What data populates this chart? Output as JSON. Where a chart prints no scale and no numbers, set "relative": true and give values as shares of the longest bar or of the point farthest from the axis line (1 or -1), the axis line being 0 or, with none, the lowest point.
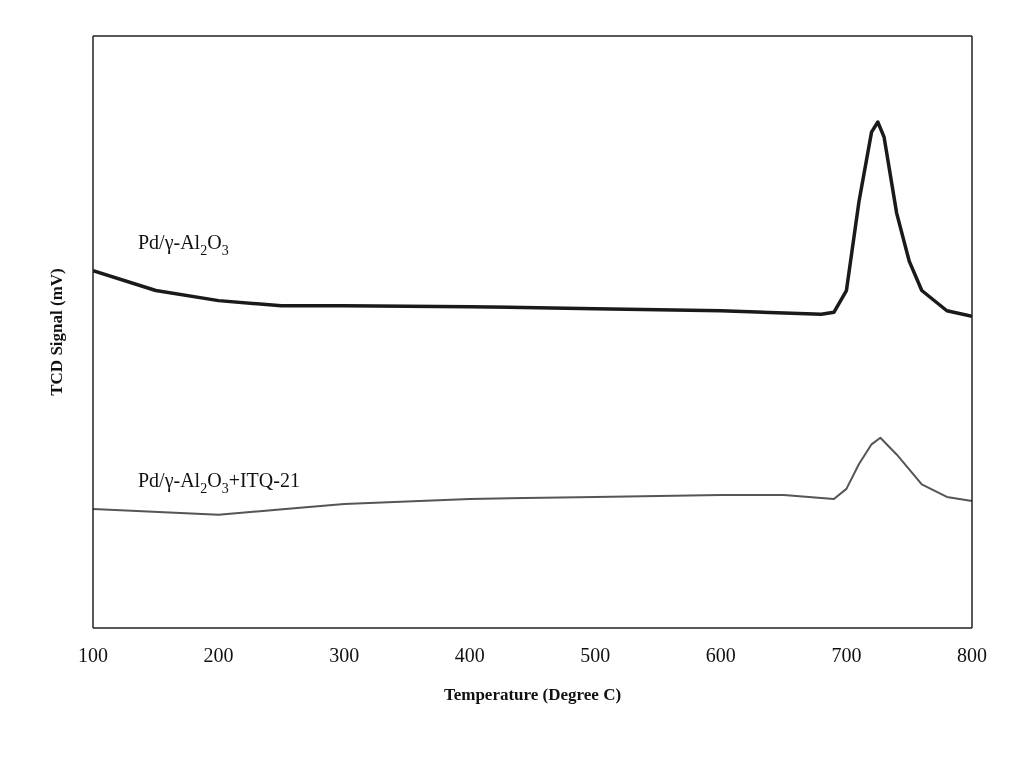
{
  "chart_data": {
    "type": "line",
    "relative": true,
    "xlabel": "Temperature (Degree C)",
    "ylabel": "TCD Signal (mV)",
    "xlim": [
      100,
      800
    ],
    "xticks": [
      100,
      200,
      300,
      400,
      500,
      600,
      700,
      800
    ],
    "marker": "none",
    "series": [
      {
        "name": "Pd/γ-Al$_{2}$O$_{3}$",
        "color": "#1a1a1a",
        "x": [
          100,
          150,
          200,
          250,
          300,
          400,
          500,
          600,
          680,
          690,
          700,
          710,
          720,
          725,
          730,
          740,
          750,
          760,
          780,
          800
        ],
        "values": [
          0.706,
          0.667,
          0.647,
          0.637,
          0.637,
          0.635,
          0.631,
          0.627,
          0.62,
          0.624,
          0.667,
          0.843,
          0.98,
          1,
          0.97,
          0.82,
          0.725,
          0.667,
          0.627,
          0.616
        ]
      },
      {
        "name": "Pd/γ-Al$_{2}$O$_{3}$+ITQ-21",
        "color": "#555555",
        "x": [
          100,
          200,
          300,
          400,
          500,
          600,
          650,
          690,
          700,
          710,
          720,
          727,
          740,
          760,
          780,
          800
        ],
        "values": [
          0.235,
          0.224,
          0.245,
          0.255,
          0.259,
          0.263,
          0.263,
          0.255,
          0.275,
          0.324,
          0.363,
          0.376,
          0.343,
          0.284,
          0.259,
          0.251
        ]
      }
    ]
  }
}
